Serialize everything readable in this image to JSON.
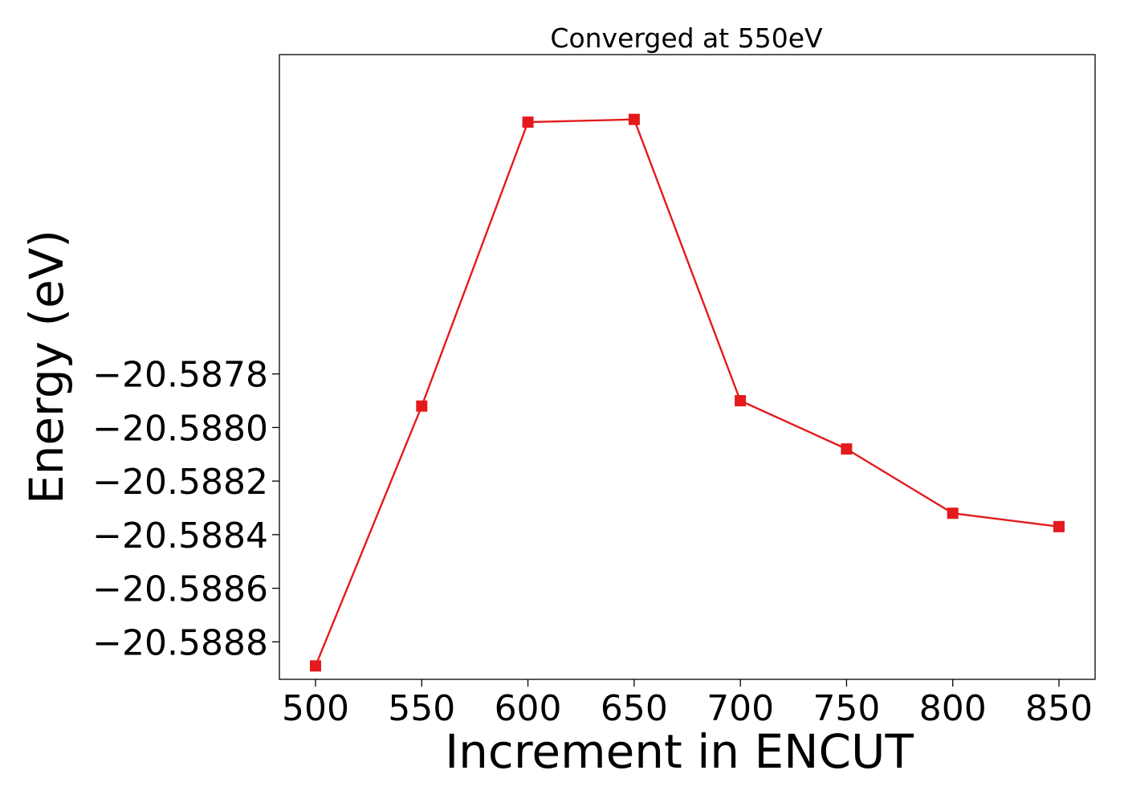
{
  "chart_data": {
    "type": "line",
    "title": "Converged at 550eV",
    "xlabel": "Increment in ENCUT",
    "ylabel": "Energy (eV)",
    "x": [
      500,
      550,
      600,
      650,
      700,
      750,
      800,
      850
    ],
    "series": [
      {
        "values": [
          -20.58889,
          -20.58792,
          -20.58686,
          -20.58685,
          -20.5879,
          -20.58808,
          -20.58832,
          -20.58837
        ],
        "color": "#e41a1c",
        "marker": "square"
      }
    ],
    "xticks": [
      500,
      550,
      600,
      650,
      700,
      750,
      800,
      850
    ],
    "xtick_labels": [
      "500",
      "550",
      "600",
      "650",
      "700",
      "750",
      "800",
      "850"
    ],
    "yticks": [
      -20.5878,
      -20.588,
      -20.5882,
      -20.5884,
      -20.5886,
      -20.5888
    ],
    "ytick_labels": [
      "−20.5878",
      "−20.5880",
      "−20.5882",
      "−20.5884",
      "−20.5886",
      "−20.5888"
    ],
    "xlim": [
      483,
      867
    ],
    "ylim": [
      -20.58894,
      -20.586608
    ],
    "grid": false,
    "legend": "none"
  }
}
